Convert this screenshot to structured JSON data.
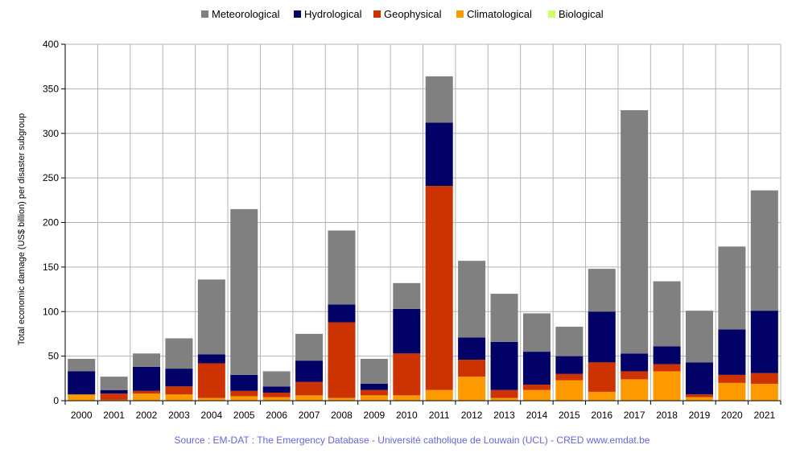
{
  "chart_data": {
    "type": "bar",
    "stacked": true,
    "ylabel": "Total economic damage (US$ billion) per disaster subgroup",
    "xlabel": "",
    "ylim": [
      0,
      400
    ],
    "yticks": [
      "0",
      "50",
      "100",
      "150",
      "200",
      "250",
      "300",
      "350",
      "400"
    ],
    "grid": true,
    "legend_position": "top",
    "categories": [
      "2000",
      "2001",
      "2002",
      "2003",
      "2004",
      "2005",
      "2006",
      "2007",
      "2008",
      "2009",
      "2010",
      "2011",
      "2012",
      "2013",
      "2014",
      "2015",
      "2016",
      "2017",
      "2018",
      "2019",
      "2020",
      "2021"
    ],
    "series": [
      {
        "name": "Meteorological",
        "color": "#808080",
        "values": [
          14,
          15,
          15,
          34,
          84,
          186,
          17,
          30,
          83,
          28,
          29,
          52,
          86,
          54,
          43,
          33,
          48,
          273,
          73,
          58,
          93,
          135
        ]
      },
      {
        "name": "Hydrological",
        "color": "#000066",
        "values": [
          26,
          4,
          27,
          20,
          10,
          18,
          7,
          24,
          20,
          7,
          50,
          71,
          25,
          54,
          37,
          20,
          57,
          20,
          20,
          36,
          51,
          70
        ]
      },
      {
        "name": "Geophysical",
        "color": "#cc3300",
        "values": [
          0,
          7,
          3,
          9,
          39,
          6,
          5,
          15,
          85,
          6,
          47,
          229,
          19,
          9,
          6,
          7,
          33,
          9,
          8,
          3,
          9,
          12
        ]
      },
      {
        "name": "Climatological",
        "color": "#ff9900",
        "values": [
          7,
          1,
          8,
          7,
          3,
          5,
          4,
          6,
          3,
          6,
          6,
          12,
          27,
          3,
          12,
          23,
          10,
          24,
          33,
          4,
          20,
          19
        ]
      },
      {
        "name": "Biological",
        "color": "#ccff66",
        "values": [
          0,
          0,
          0,
          0,
          0,
          0,
          0,
          0,
          0,
          0,
          0,
          0,
          0,
          0,
          0,
          0,
          0,
          0,
          0,
          0,
          0,
          0
        ]
      }
    ]
  },
  "source": "Source : EM-DAT : The Emergency Database - Université catholique de Louwain (UCL) - CRED  www.emdat.be"
}
